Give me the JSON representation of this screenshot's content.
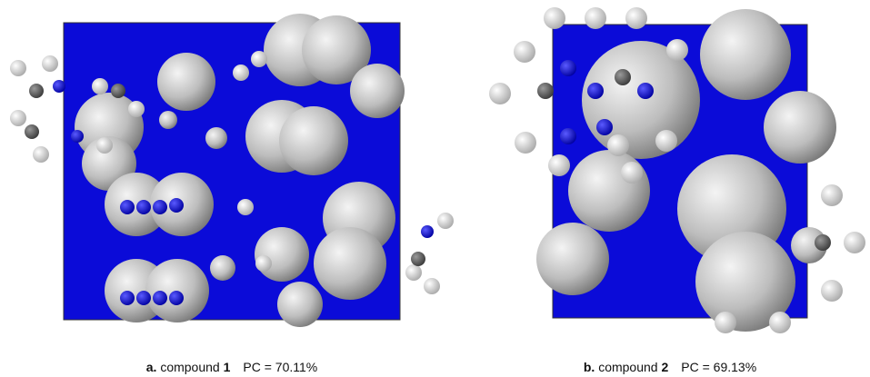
{
  "panels": [
    {
      "label": "a.",
      "compound": "compound",
      "number": "1",
      "pc": "PC = 70.11%"
    },
    {
      "label": "b.",
      "compound": "compound",
      "number": "2",
      "pc": "PC = 69.13%"
    }
  ]
}
